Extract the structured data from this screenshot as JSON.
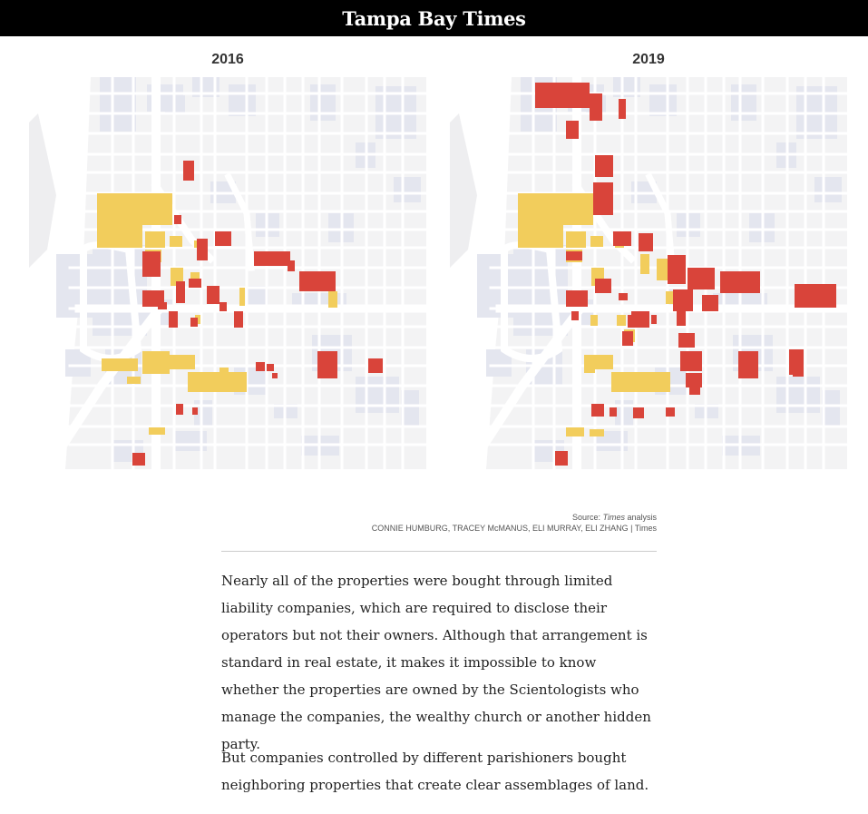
{
  "masthead": {
    "logo": "Tampa Bay Times"
  },
  "maps": [
    {
      "title": "2016"
    },
    {
      "title": "2019"
    }
  ],
  "colors": {
    "red_parcels": "#d9443a",
    "yellow_parcels": "#f2cd5c",
    "buildings": "#e4e6ef",
    "roads": "#ffffff",
    "block_fill": "#f3f3f4"
  },
  "credits": {
    "source_prefix": "Source: ",
    "source_em": "Times",
    "source_suffix": " analysis",
    "byline": "CONNIE HUMBURG, TRACEY McMANUS, ELI MURRAY, ELI ZHANG | Times"
  },
  "paragraphs": [
    "Nearly all of the properties were bought through limited liability companies, which are required to disclose their operators but not their owners. Although that arrangement is standard in real estate, it makes it impossible to know whether the properties are owned by the Scientologists who manage the companies, the wealthy church or another hidden party.",
    "But companies controlled by different parishioners bought neighboring properties that create clear assemblages of land."
  ]
}
